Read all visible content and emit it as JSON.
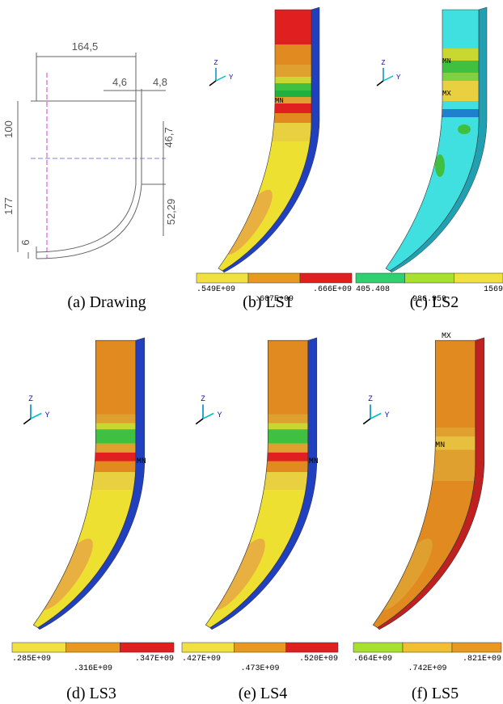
{
  "panels": [
    {
      "caption": "(a) Drawing",
      "dimensions": [
        "164,5",
        "4,6",
        "4,8",
        "100",
        "46,7",
        "177",
        "52,29",
        "6"
      ]
    },
    {
      "caption": "(b) LS1",
      "axes": [
        "Z",
        "Y"
      ],
      "markers": [
        "MN"
      ],
      "legend": {
        "labels": [
          ".549E+09",
          ".607E+09",
          ".666E+09"
        ],
        "colors": [
          "#f0e040",
          "#e89a20",
          "#e02020"
        ]
      }
    },
    {
      "caption": "(c) LS2",
      "axes": [
        "Z",
        "Y"
      ],
      "markers": [
        "MN",
        "MX"
      ],
      "legend": {
        "labels": [
          "405.408",
          "986.959",
          "1569"
        ],
        "colors": [
          "#30d070",
          "#a8e030",
          "#f0e040"
        ]
      }
    },
    {
      "caption": "(d) LS3",
      "axes": [
        "Z",
        "Y"
      ],
      "markers": [
        "MN"
      ],
      "legend": {
        "labels": [
          ".285E+09",
          ".316E+09",
          ".347E+09"
        ],
        "colors": [
          "#f0e040",
          "#e89a20",
          "#e02020"
        ]
      }
    },
    {
      "caption": "(e) LS4",
      "axes": [
        "Z",
        "Y"
      ],
      "markers": [
        "MN"
      ],
      "legend": {
        "labels": [
          ".427E+09",
          ".473E+09",
          ".520E+09"
        ],
        "colors": [
          "#f0e040",
          "#e89a20",
          "#e02020"
        ]
      }
    },
    {
      "caption": "(f) LS5",
      "axes": [
        "Z",
        "Y"
      ],
      "markers": [
        "MX",
        "MN"
      ],
      "legend": {
        "labels": [
          ".664E+09",
          ".742E+09",
          ".821E+09"
        ],
        "colors": [
          "#a8e030",
          "#f0c030",
          "#e89a20"
        ]
      }
    }
  ]
}
